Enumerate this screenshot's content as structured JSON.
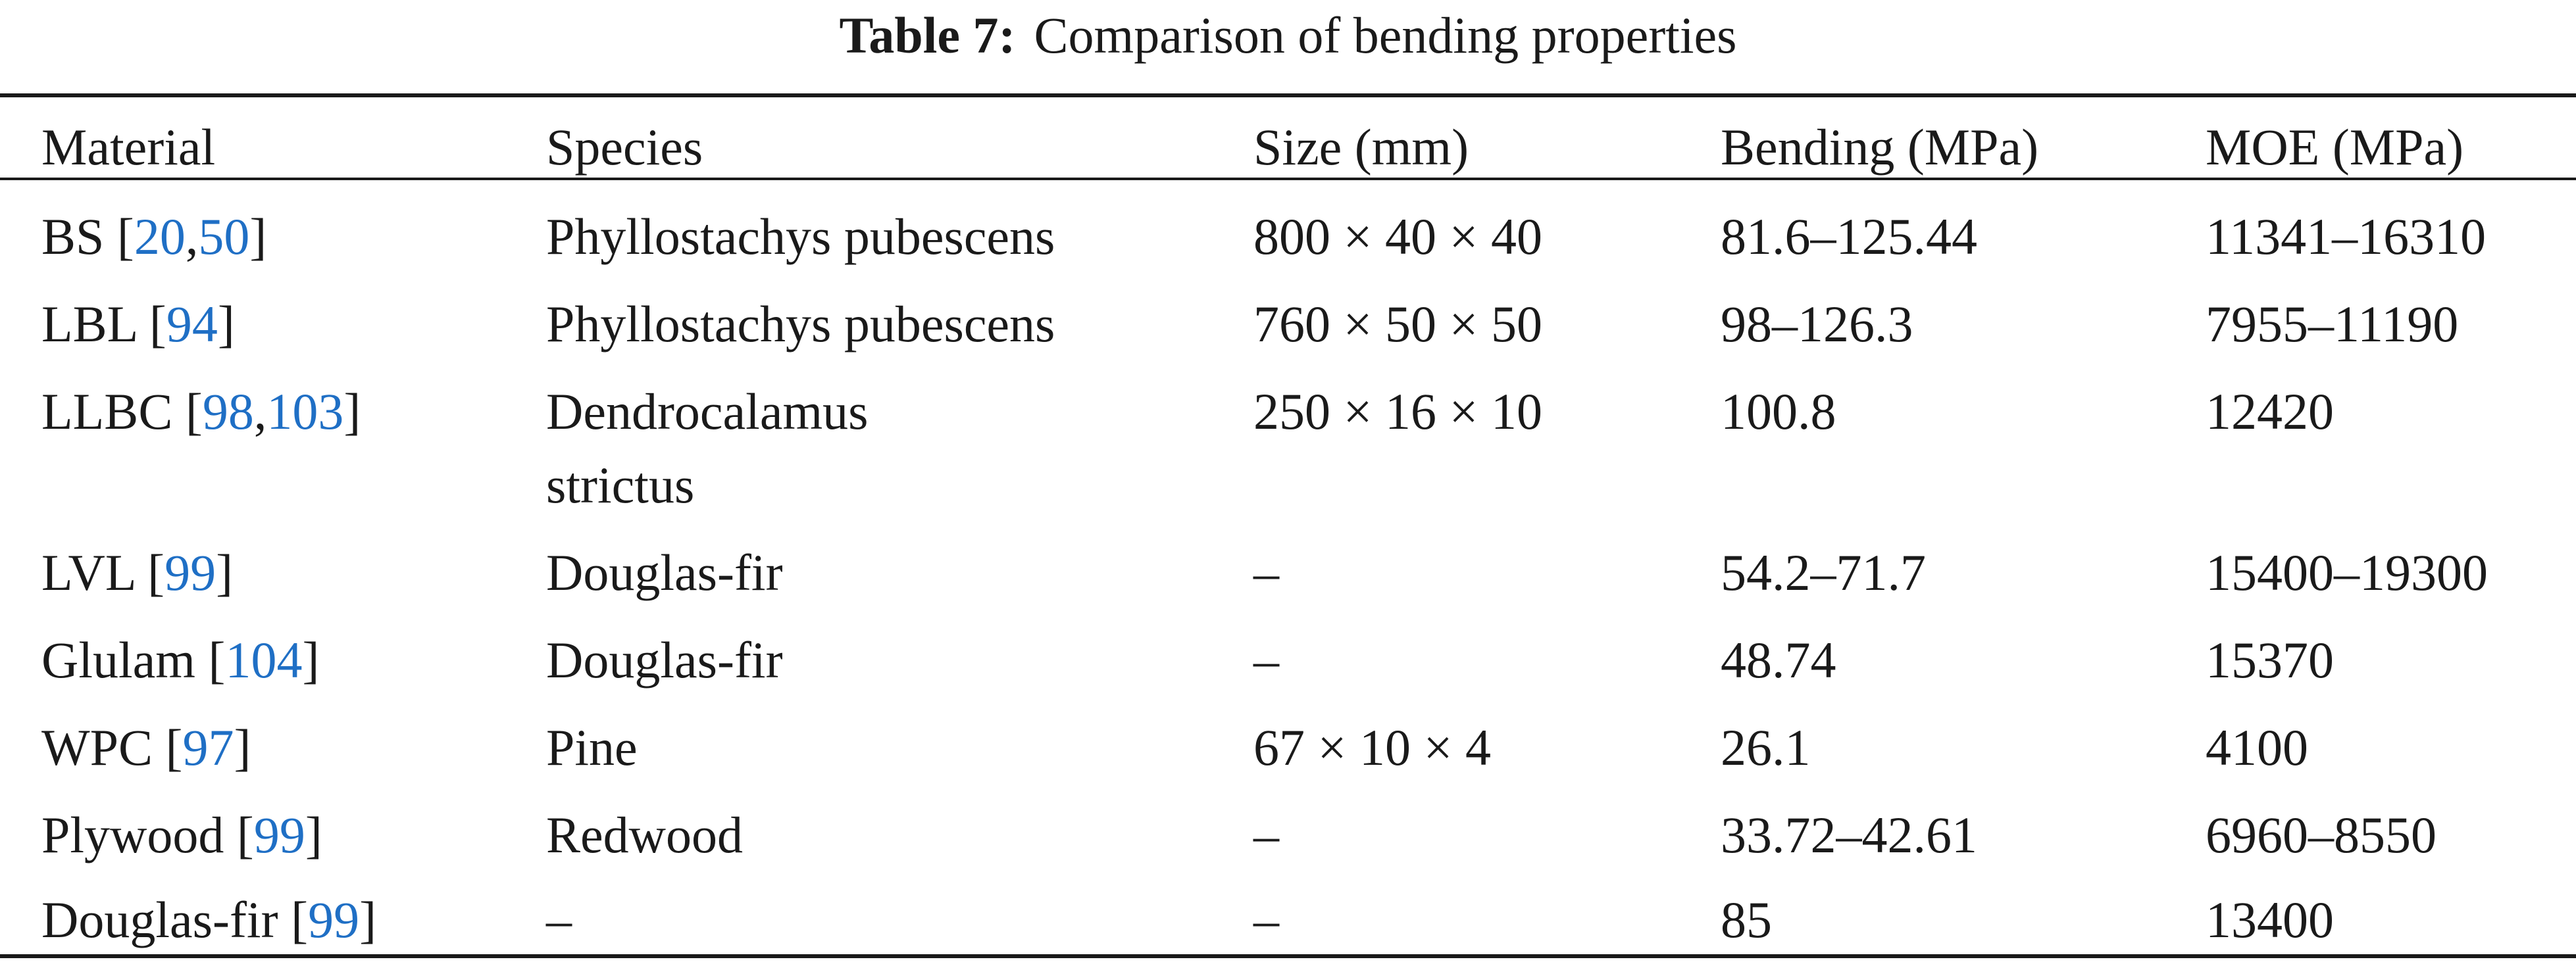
{
  "caption": {
    "label": "Table 7:",
    "title": "Comparison of bending properties"
  },
  "headers": [
    "Material",
    "Species",
    "Size (mm)",
    "Bending (MPa)",
    "MOE (MPa)"
  ],
  "rows": [
    {
      "material": "BS",
      "refs": [
        "20",
        "50"
      ],
      "species": [
        "Phyllostachys pubescens"
      ],
      "size": "800 × 40 × 40",
      "bending": "81.6–125.44",
      "moe": "11341–16310"
    },
    {
      "material": "LBL",
      "refs": [
        "94"
      ],
      "species": [
        "Phyllostachys pubescens"
      ],
      "size": "760 × 50 × 50",
      "bending": "98–126.3",
      "moe": "7955–11190"
    },
    {
      "material": "LLBC",
      "refs": [
        "98",
        "103"
      ],
      "species": [
        "Dendrocalamus",
        "strictus"
      ],
      "size": "250 × 16 × 10",
      "bending": "100.8",
      "moe": "12420"
    },
    {
      "material": "LVL",
      "refs": [
        "99"
      ],
      "species": [
        "Douglas-fir"
      ],
      "size": "–",
      "bending": "54.2–71.7",
      "moe": "15400–19300"
    },
    {
      "material": "Glulam",
      "refs": [
        "104"
      ],
      "species": [
        "Douglas-fir"
      ],
      "size": "–",
      "bending": "48.74",
      "moe": "15370"
    },
    {
      "material": "WPC",
      "refs": [
        "97"
      ],
      "species": [
        "Pine"
      ],
      "size": "67 × 10 × 4",
      "bending": "26.1",
      "moe": "4100"
    },
    {
      "material": "Plywood",
      "refs": [
        "99"
      ],
      "species": [
        "Redwood"
      ],
      "size": "–",
      "bending": "33.72–42.61",
      "moe": "6960–8550"
    },
    {
      "material": "Douglas-fir",
      "refs": [
        "99"
      ],
      "species": [
        "–"
      ],
      "size": "–",
      "bending": "85",
      "moe": "13400"
    }
  ]
}
